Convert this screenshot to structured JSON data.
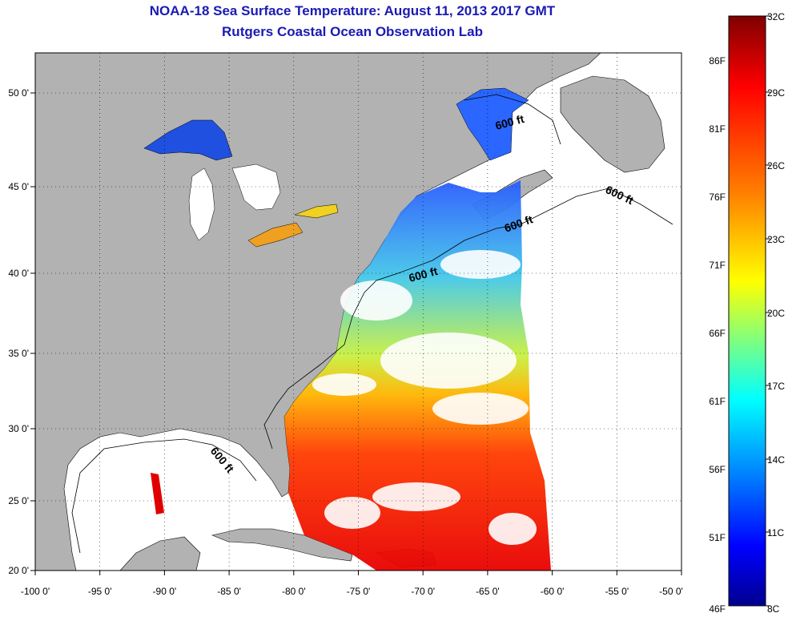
{
  "title": {
    "line1": "NOAA-18 Sea Surface Temperature:  August 11, 2013 2017 GMT",
    "line2": "Rutgers Coastal Ocean Observation Lab"
  },
  "axes": {
    "lon_ticks": [
      "-100 0'",
      "-95 0'",
      "-90 0'",
      "-85 0'",
      "-80 0'",
      "-75 0'",
      "-70 0'",
      "-65 0'",
      "-60 0'",
      "-55 0'",
      "-50 0'"
    ],
    "lat_ticks": [
      "20 0'",
      "25 0'",
      "30 0'",
      "35 0'",
      "40 0'",
      "45 0'",
      "50 0'"
    ],
    "grid": "dotted"
  },
  "contour_labels": [
    "600 ft",
    "600 ft",
    "600 ft",
    "600 ft",
    "600 ft"
  ],
  "colorbar": {
    "celsius": [
      "32C",
      "29C",
      "26C",
      "23C",
      "20C",
      "17C",
      "14C",
      "11C",
      "8C"
    ],
    "fahrenheit": [
      "86F",
      "81F",
      "76F",
      "71F",
      "66F",
      "61F",
      "56F",
      "51F",
      "46F"
    ],
    "colors": [
      "#7f0000",
      "#ff0000",
      "#ff7f00",
      "#ffff00",
      "#7fff7f",
      "#00ffff",
      "#007fff",
      "#0000ff",
      "#00008f"
    ]
  },
  "colors": {
    "land": "#b2b2b2",
    "ocean_missing": "#ffffff",
    "title": "#1a1ab4"
  }
}
